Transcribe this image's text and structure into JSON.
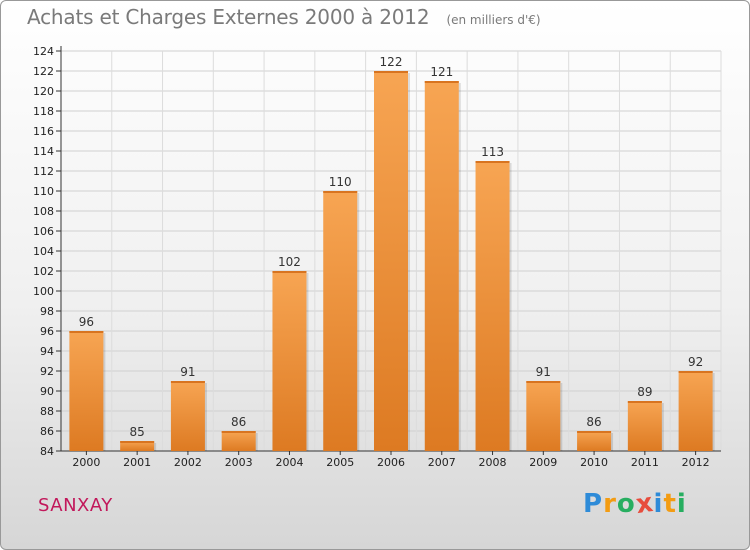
{
  "chart_data": {
    "type": "bar",
    "title": "Achats et Charges Externes 2000 à 2012",
    "subtitle": "(en milliers d'€)",
    "categories": [
      "2000",
      "2001",
      "2002",
      "2003",
      "2004",
      "2005",
      "2006",
      "2007",
      "2008",
      "2009",
      "2010",
      "2011",
      "2012"
    ],
    "values": [
      96,
      85,
      91,
      86,
      102,
      110,
      122,
      121,
      113,
      91,
      86,
      89,
      92
    ],
    "ylim": [
      84,
      124
    ],
    "yticks": [
      84,
      86,
      88,
      90,
      92,
      94,
      96,
      98,
      100,
      102,
      104,
      106,
      108,
      110,
      112,
      114,
      116,
      118,
      120,
      122,
      124
    ],
    "grid": true,
    "bar_color": "#f0903a",
    "bar_color_dark": "#d87420"
  },
  "footer": {
    "place": "SANXAY",
    "logo": "Proxiti",
    "logo_letters": [
      {
        "ch": "P",
        "color": "#2e8bd8"
      },
      {
        "ch": "r",
        "color": "#f39c12"
      },
      {
        "ch": "o",
        "color": "#27ae60"
      },
      {
        "ch": "x",
        "color": "#e74c3c"
      },
      {
        "ch": "i",
        "color": "#2e8bd8"
      },
      {
        "ch": "t",
        "color": "#f39c12"
      },
      {
        "ch": "i",
        "color": "#27ae60"
      }
    ]
  }
}
